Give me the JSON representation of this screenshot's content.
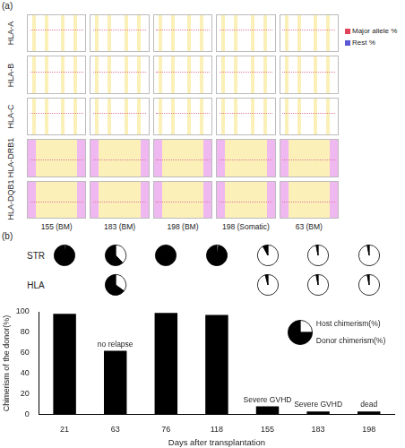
{
  "panel_a": {
    "label": "(a)",
    "rows": [
      "HLA-A",
      "HLA-B",
      "HLA-C",
      "HLA-DRB1",
      "HLA-DQB1"
    ],
    "columns": [
      "155 (BM)",
      "183 (BM)",
      "198 (BM)",
      "198 (Somatic)",
      "63 (BM)"
    ],
    "legend": [
      {
        "name": "Major allele %",
        "color": "#e0435a"
      },
      {
        "name": "Rest %",
        "color": "#5a5ad6"
      }
    ]
  },
  "chart_data": [
    {
      "type": "bar",
      "panel_label": "(b)",
      "categories": [
        21,
        63,
        76,
        118,
        155,
        183,
        198
      ],
      "values": [
        98,
        62,
        99,
        97,
        8,
        3,
        3
      ],
      "color": "#000000",
      "x_label": "Days after transplantation",
      "y_label": "Chimerism of the donor(%)",
      "ylim": [
        0,
        100
      ],
      "yticks": [
        0,
        20,
        40,
        60,
        80,
        100
      ],
      "grid": false,
      "annotations": [
        {
          "x": 63,
          "text": "no relapse"
        },
        {
          "x": 155,
          "text": "Severe GVHD"
        },
        {
          "x": 183,
          "text": "Severe GVHD"
        },
        {
          "x": 198,
          "text": "dead"
        }
      ]
    },
    {
      "type": "pie",
      "series": [
        {
          "name": "Host chimerism(%)",
          "color": "#ffffff"
        },
        {
          "name": "Donor chimerism(%)",
          "color": "#000000"
        }
      ],
      "rows": [
        {
          "name": "STR",
          "days": [
            21,
            63,
            76,
            118,
            155,
            183,
            198
          ],
          "host": [
            2,
            38,
            1,
            3,
            92,
            97,
            97
          ],
          "donor": [
            98,
            62,
            99,
            97,
            8,
            3,
            3
          ]
        },
        {
          "name": "HLA",
          "days": [
            63,
            155,
            183,
            198
          ],
          "host": [
            35,
            96,
            97,
            97
          ],
          "donor": [
            65,
            4,
            3,
            3
          ]
        }
      ],
      "legend_pie": {
        "host": 25,
        "donor": 75
      }
    }
  ]
}
